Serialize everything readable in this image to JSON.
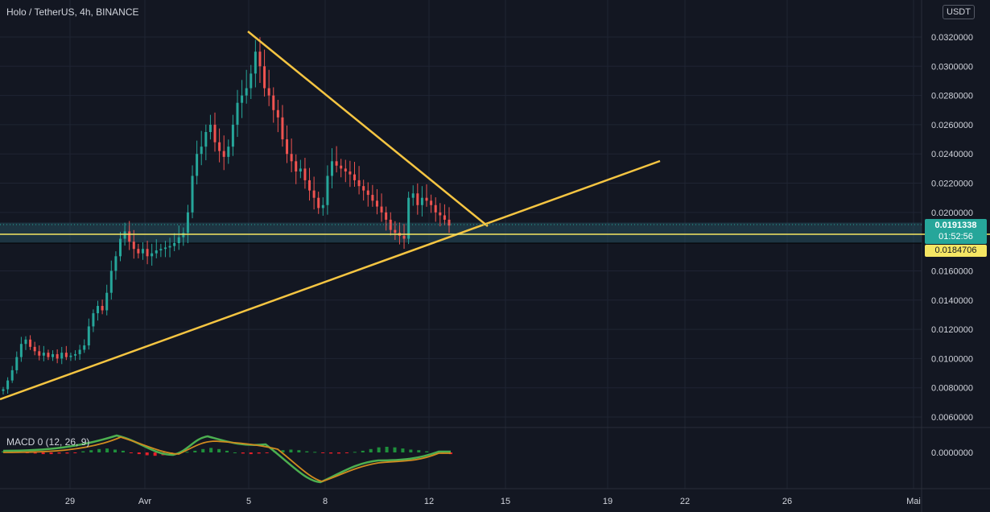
{
  "header": {
    "symbol_title": "Holo / TetherUS, 4h, BINANCE",
    "currency_button": "USDT"
  },
  "indicator": {
    "label": "MACD 0 (12, 26, 9)"
  },
  "price_axis": {
    "ticks": [
      "0.0320000",
      "0.0300000",
      "0.0280000",
      "0.0260000",
      "0.0240000",
      "0.0220000",
      "0.0200000",
      "0.0160000",
      "0.0140000",
      "0.0120000",
      "0.0100000",
      "0.0080000",
      "0.0060000"
    ],
    "macd_tick": "0.0000000"
  },
  "time_axis": {
    "ticks": [
      "29",
      "Avr",
      "5",
      "8",
      "12",
      "15",
      "19",
      "22",
      "26",
      "Mai"
    ]
  },
  "price_tags": {
    "last_price": "0.0191338",
    "countdown": "01:52:56",
    "horizontal_line_price": "0.0184706"
  },
  "colors": {
    "background": "#131722",
    "up": "#26a69a",
    "down": "#ef5350",
    "trendline": "#f5c542",
    "horizontal_line": "#f5e663",
    "zone_fill": "#2a5c6a"
  },
  "chart_data": {
    "type": "candlestick",
    "title": "Holo / TetherUS, 4h, BINANCE",
    "ylim": [
      0.0055,
      0.0345
    ],
    "y_ticks": [
      0.006,
      0.008,
      0.01,
      0.012,
      0.014,
      0.016,
      0.02,
      0.022,
      0.024,
      0.026,
      0.028,
      0.03,
      0.032
    ],
    "x_labels": [
      "29",
      "Avr",
      "5",
      "8",
      "12",
      "15",
      "19",
      "22",
      "26",
      "Mai"
    ],
    "close_series": [
      0.0079,
      0.0085,
      0.0092,
      0.0101,
      0.011,
      0.0113,
      0.0108,
      0.0105,
      0.0102,
      0.0104,
      0.0101,
      0.0103,
      0.01,
      0.0104,
      0.0101,
      0.0102,
      0.0103,
      0.0106,
      0.0109,
      0.0122,
      0.0131,
      0.0136,
      0.0133,
      0.0145,
      0.016,
      0.017,
      0.0182,
      0.0187,
      0.018,
      0.0175,
      0.0172,
      0.0175,
      0.017,
      0.0172,
      0.0174,
      0.0175,
      0.0176,
      0.0177,
      0.0179,
      0.0183,
      0.0186,
      0.02,
      0.0225,
      0.024,
      0.0245,
      0.0255,
      0.026,
      0.0248,
      0.0242,
      0.0238,
      0.0245,
      0.026,
      0.0275,
      0.028,
      0.0285,
      0.0295,
      0.031,
      0.03,
      0.0285,
      0.028,
      0.027,
      0.0265,
      0.025,
      0.024,
      0.0235,
      0.0228,
      0.023,
      0.0222,
      0.0215,
      0.021,
      0.0203,
      0.0205,
      0.0225,
      0.0235,
      0.0232,
      0.023,
      0.0228,
      0.0226,
      0.0222,
      0.0218,
      0.0215,
      0.0212,
      0.0208,
      0.0204,
      0.02,
      0.0195,
      0.0188,
      0.0186,
      0.0184,
      0.0182,
      0.021,
      0.0213,
      0.0205,
      0.021,
      0.0208,
      0.0205,
      0.02,
      0.0198,
      0.0195,
      0.0191
    ],
    "drawings": [
      {
        "name": "descending-trendline",
        "from": [
          0.0325,
          "Apr 5"
        ],
        "to": [
          0.0192,
          "Apr 14"
        ]
      },
      {
        "name": "ascending-trendline",
        "from": [
          0.007,
          "Mar 25"
        ],
        "to": [
          0.0235,
          "Apr 21"
        ]
      },
      {
        "name": "support-zone",
        "from": 0.0179,
        "to": 0.0193
      },
      {
        "name": "horizontal-line",
        "value": 0.0184706
      }
    ],
    "macd": {
      "label": "MACD 0 (12, 26, 9)",
      "histogram": [
        0.2,
        0.3,
        0.2,
        -0.1,
        -0.2,
        -0.3,
        -0.3,
        -0.2,
        -0.2,
        -0.1,
        0.2,
        0.4,
        0.6,
        0.7,
        0.5,
        0.3,
        -0.1,
        -0.3,
        -0.5,
        -0.6,
        -0.5,
        -0.4,
        -0.2,
        0.1,
        0.3,
        0.6,
        0.8,
        0.6,
        0.3,
        0.0,
        -0.2,
        -0.3,
        -0.2,
        -0.1,
        0.2,
        0.4,
        0.5,
        0.4,
        0.2,
        0.1,
        -0.1,
        -0.2,
        -0.2,
        -0.1,
        0.1,
        0.3,
        0.6,
        0.9,
        1.0,
        0.9,
        0.7,
        0.5,
        0.4,
        0.2,
        0.0,
        -0.2,
        -0.3
      ]
    }
  }
}
